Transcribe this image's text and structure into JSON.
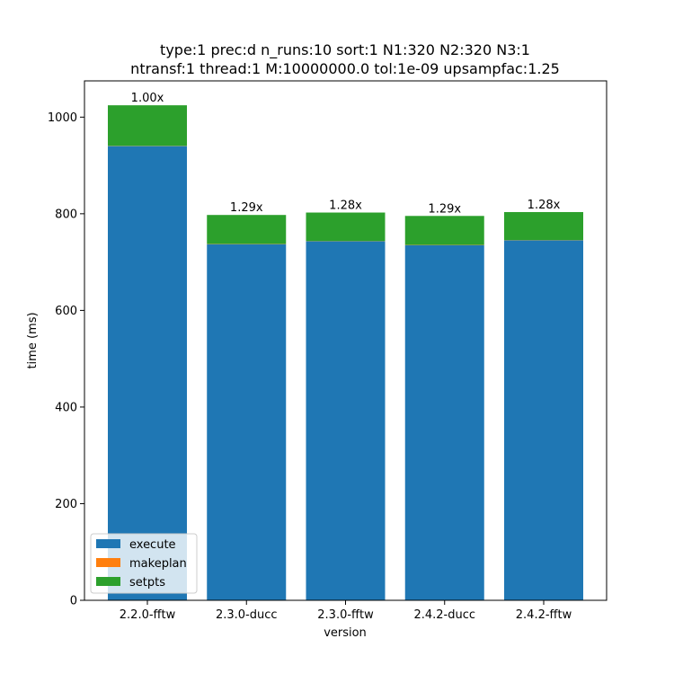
{
  "chart_data": {
    "type": "bar",
    "stacked": true,
    "title_lines": [
      "type:1 prec:d n_runs:10 sort:1 N1:320 N2:320 N3:1",
      "ntransf:1 thread:1 M:10000000.0 tol:1e-09 upsampfac:1.25"
    ],
    "xlabel": "version",
    "ylabel": "time (ms)",
    "categories": [
      "2.2.0-fftw",
      "2.3.0-ducc",
      "2.3.0-fftw",
      "2.4.2-ducc",
      "2.4.2-fftw"
    ],
    "series": [
      {
        "name": "execute",
        "color": "#1f77b4",
        "values": [
          940,
          737,
          743,
          735,
          745
        ]
      },
      {
        "name": "makeplan",
        "color": "#ff7f0e",
        "values": [
          0.5,
          0.5,
          0.5,
          0.5,
          0.5
        ]
      },
      {
        "name": "setpts",
        "color": "#2ca02c",
        "values": [
          84,
          60,
          59,
          60,
          58
        ]
      }
    ],
    "bar_labels": [
      "1.00x",
      "1.29x",
      "1.28x",
      "1.29x",
      "1.28x"
    ],
    "ylim": [
      0,
      1075
    ],
    "yticks": [
      0,
      200,
      400,
      600,
      800,
      1000
    ],
    "legend_position": "lower-left",
    "grid": false
  }
}
